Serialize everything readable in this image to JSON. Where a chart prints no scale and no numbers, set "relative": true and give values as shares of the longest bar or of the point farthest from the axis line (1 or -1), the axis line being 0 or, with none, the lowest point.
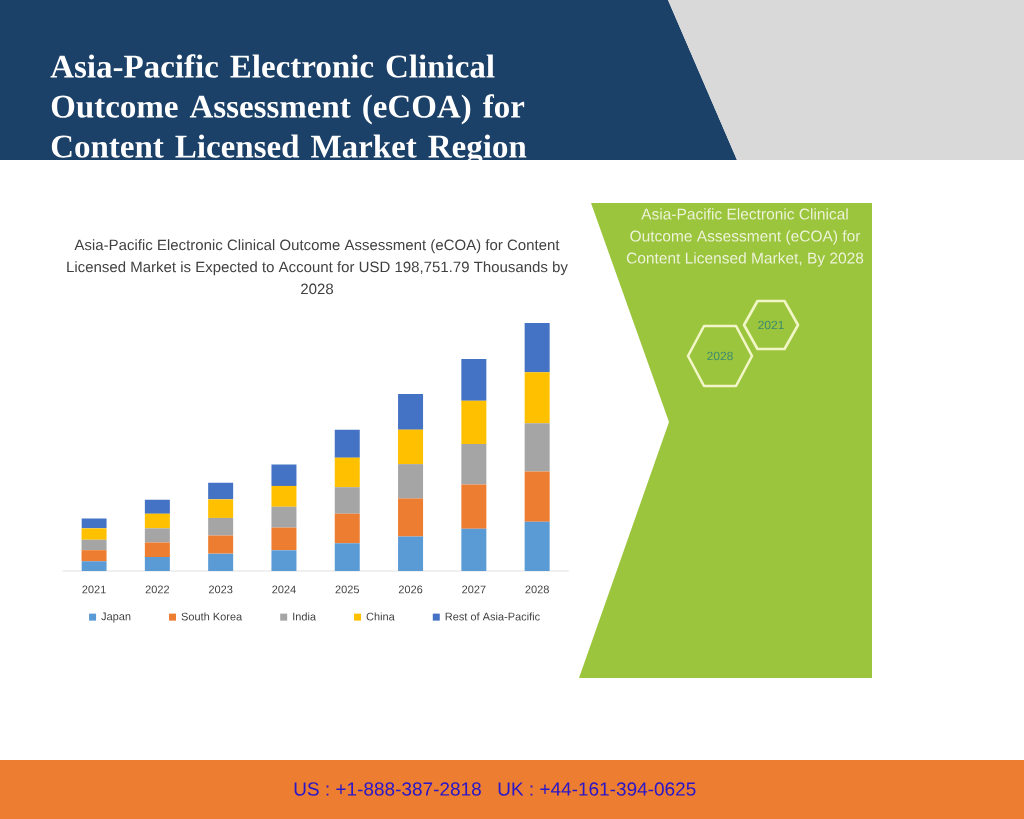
{
  "chart_data": {
    "type": "bar",
    "stacked": true,
    "relative": true,
    "title": "Asia-Pacific Electronic Clinical Outcome Assessment (eCOA) for Content Licensed Market Region",
    "subtitle": "Asia-Pacific Electronic Clinical Outcome Assessment (eCOA) for Content Licensed Market is Expected to Account for USD 198,751.79 Thousands by 2028",
    "categories": [
      "2021",
      "2022",
      "2023",
      "2024",
      "2025",
      "2026",
      "2027",
      "2028"
    ],
    "series": [
      {
        "name": "Japan",
        "color": "#5b9bd5",
        "values": [
          0.039,
          0.056,
          0.07,
          0.084,
          0.112,
          0.139,
          0.17,
          0.199
        ]
      },
      {
        "name": "South Korea",
        "color": "#ed7d31",
        "values": [
          0.045,
          0.059,
          0.073,
          0.091,
          0.119,
          0.153,
          0.179,
          0.202
        ]
      },
      {
        "name": "India",
        "color": "#a5a5a5",
        "values": [
          0.042,
          0.057,
          0.071,
          0.084,
          0.107,
          0.139,
          0.163,
          0.195
        ]
      },
      {
        "name": "China",
        "color": "#ffc000",
        "values": [
          0.046,
          0.059,
          0.075,
          0.084,
          0.119,
          0.139,
          0.174,
          0.205
        ]
      },
      {
        "name": "Rest of Asia-Pacific",
        "color": "#4472c4",
        "values": [
          0.04,
          0.056,
          0.067,
          0.086,
          0.113,
          0.144,
          0.169,
          0.199
        ]
      }
    ],
    "legend": "bottom",
    "annotations": [
      "Asia-Pacific Electronic Clinical Outcome Assessment (eCOA) for Content Licensed Market, By 2028",
      "2021",
      "2028",
      "US : +1-888-387-2818",
      "UK : +44-161-394-0625"
    ]
  }
}
